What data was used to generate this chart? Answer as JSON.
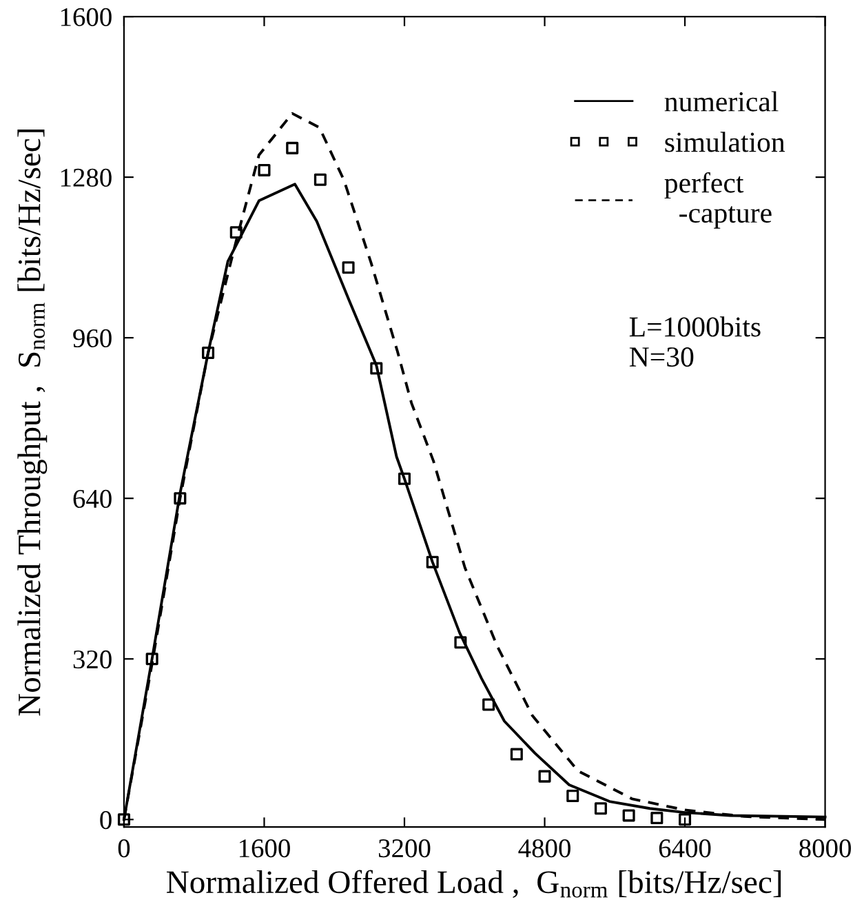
{
  "chart_data": {
    "type": "line",
    "xlabel": "Normalized Offered Load ,  G$_{norm}$ [bits/Hz/sec]",
    "ylabel": "Normalized Throughput ,  S$_{norm}$ [bits/Hz/sec]",
    "xlim": [
      0,
      8000
    ],
    "xticks": [
      0,
      1600,
      3200,
      4800,
      6400,
      8000
    ],
    "ylim": [
      -15,
      1600
    ],
    "yticks": [
      0,
      320,
      640,
      960,
      1280,
      1600
    ],
    "grid": false,
    "legend": "top right",
    "annotations": [
      "L=1000bits",
      "N=30"
    ],
    "series": [
      {
        "name": "numerical",
        "line_style": "solid",
        "marker": "none",
        "color": "#000000",
        "x": [
          0,
          320,
          640,
          960,
          1185,
          1540,
          1950,
          2200,
          2570,
          2880,
          3110,
          3200,
          3520,
          3830,
          4080,
          4340,
          4690,
          5080,
          5540,
          6000,
          6400,
          6920,
          8000
        ],
        "values": [
          0,
          320,
          650,
          930,
          1112,
          1233,
          1266,
          1192,
          1034,
          905,
          723,
          679,
          513,
          372,
          281,
          196,
          132,
          69,
          36,
          22,
          14,
          8,
          5
        ]
      },
      {
        "name": "simulation",
        "type": "scatter",
        "marker": "square",
        "color": "#000000",
        "x": [
          0,
          320,
          640,
          960,
          1280,
          1600,
          1920,
          2240,
          2560,
          2880,
          3200,
          3520,
          3840,
          4160,
          4480,
          4800,
          5120,
          5440,
          5760,
          6080,
          6400
        ],
        "values": [
          0,
          320,
          640,
          930,
          1170,
          1294,
          1338,
          1275,
          1100,
          899,
          679,
          513,
          353,
          229,
          130,
          86,
          47,
          22,
          8,
          3,
          0
        ]
      },
      {
        "name": "perfect\n  -capture",
        "line_style": "dashed",
        "marker": "none",
        "color": "#000000",
        "x": [
          0,
          320,
          640,
          960,
          1280,
          1540,
          1920,
          2230,
          2510,
          2820,
          3120,
          3280,
          3530,
          3890,
          4260,
          4660,
          5180,
          5800,
          6400,
          7080,
          8000
        ],
        "values": [
          0,
          310,
          640,
          930,
          1153,
          1324,
          1407,
          1379,
          1274,
          1109,
          933,
          830,
          715,
          502,
          345,
          207,
          97,
          41,
          19,
          6,
          0
        ]
      }
    ]
  }
}
